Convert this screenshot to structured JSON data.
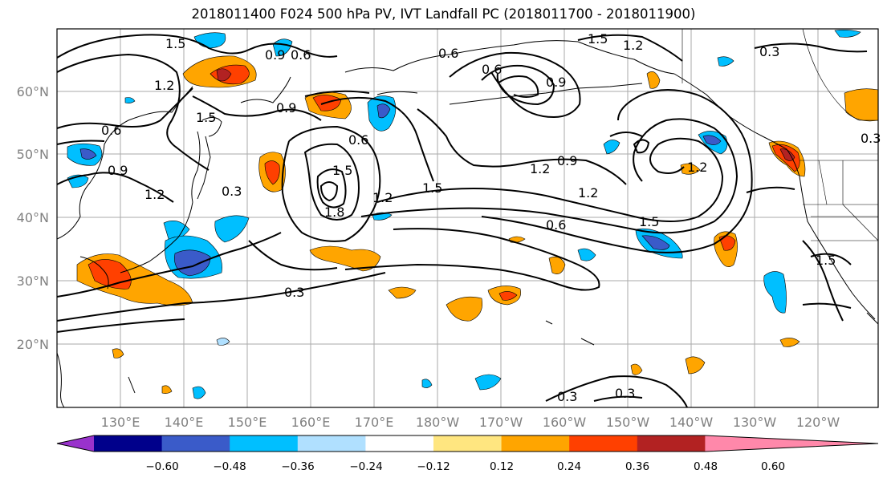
{
  "title": "2018011400 F024 500 hPa PV, IVT Landfall PC (2018011700 - 2018011900)",
  "map": {
    "lon_labels": [
      "130°E",
      "140°E",
      "150°E",
      "160°E",
      "170°E",
      "180°W",
      "170°W",
      "160°W",
      "150°W",
      "140°W",
      "130°W",
      "120°W"
    ],
    "lat_labels": [
      "60°N",
      "50°N",
      "40°N",
      "30°N",
      "20°N"
    ],
    "contour_labels": [
      "1.5",
      "0.9",
      "0.6",
      "1.2",
      "1.5",
      "0.6",
      "0.9",
      "0.6",
      "1.5",
      "1.2",
      "0.9",
      "0.3",
      "0.6",
      "1.5",
      "1.2",
      "1.8",
      "1.2",
      "1.5",
      "0.6",
      "1.2",
      "0.9",
      "1.2",
      "1.5",
      "0.3",
      "0.3",
      "0.3",
      "0.3",
      "1.5",
      "0.6",
      "1.2",
      "0.9",
      "0.3"
    ]
  },
  "colorbar": {
    "tick_labels": [
      "−0.60",
      "−0.48",
      "−0.36",
      "−0.24",
      "−0.12",
      "0.12",
      "0.24",
      "0.36",
      "0.48",
      "0.60"
    ],
    "colors": [
      "#9932cc",
      "#00008b",
      "#3a5bc9",
      "#00bfff",
      "#b0e0ff",
      "#ffffff",
      "#ffe680",
      "#ffa500",
      "#ff4000",
      "#b22222",
      "#ff88aa"
    ]
  }
}
